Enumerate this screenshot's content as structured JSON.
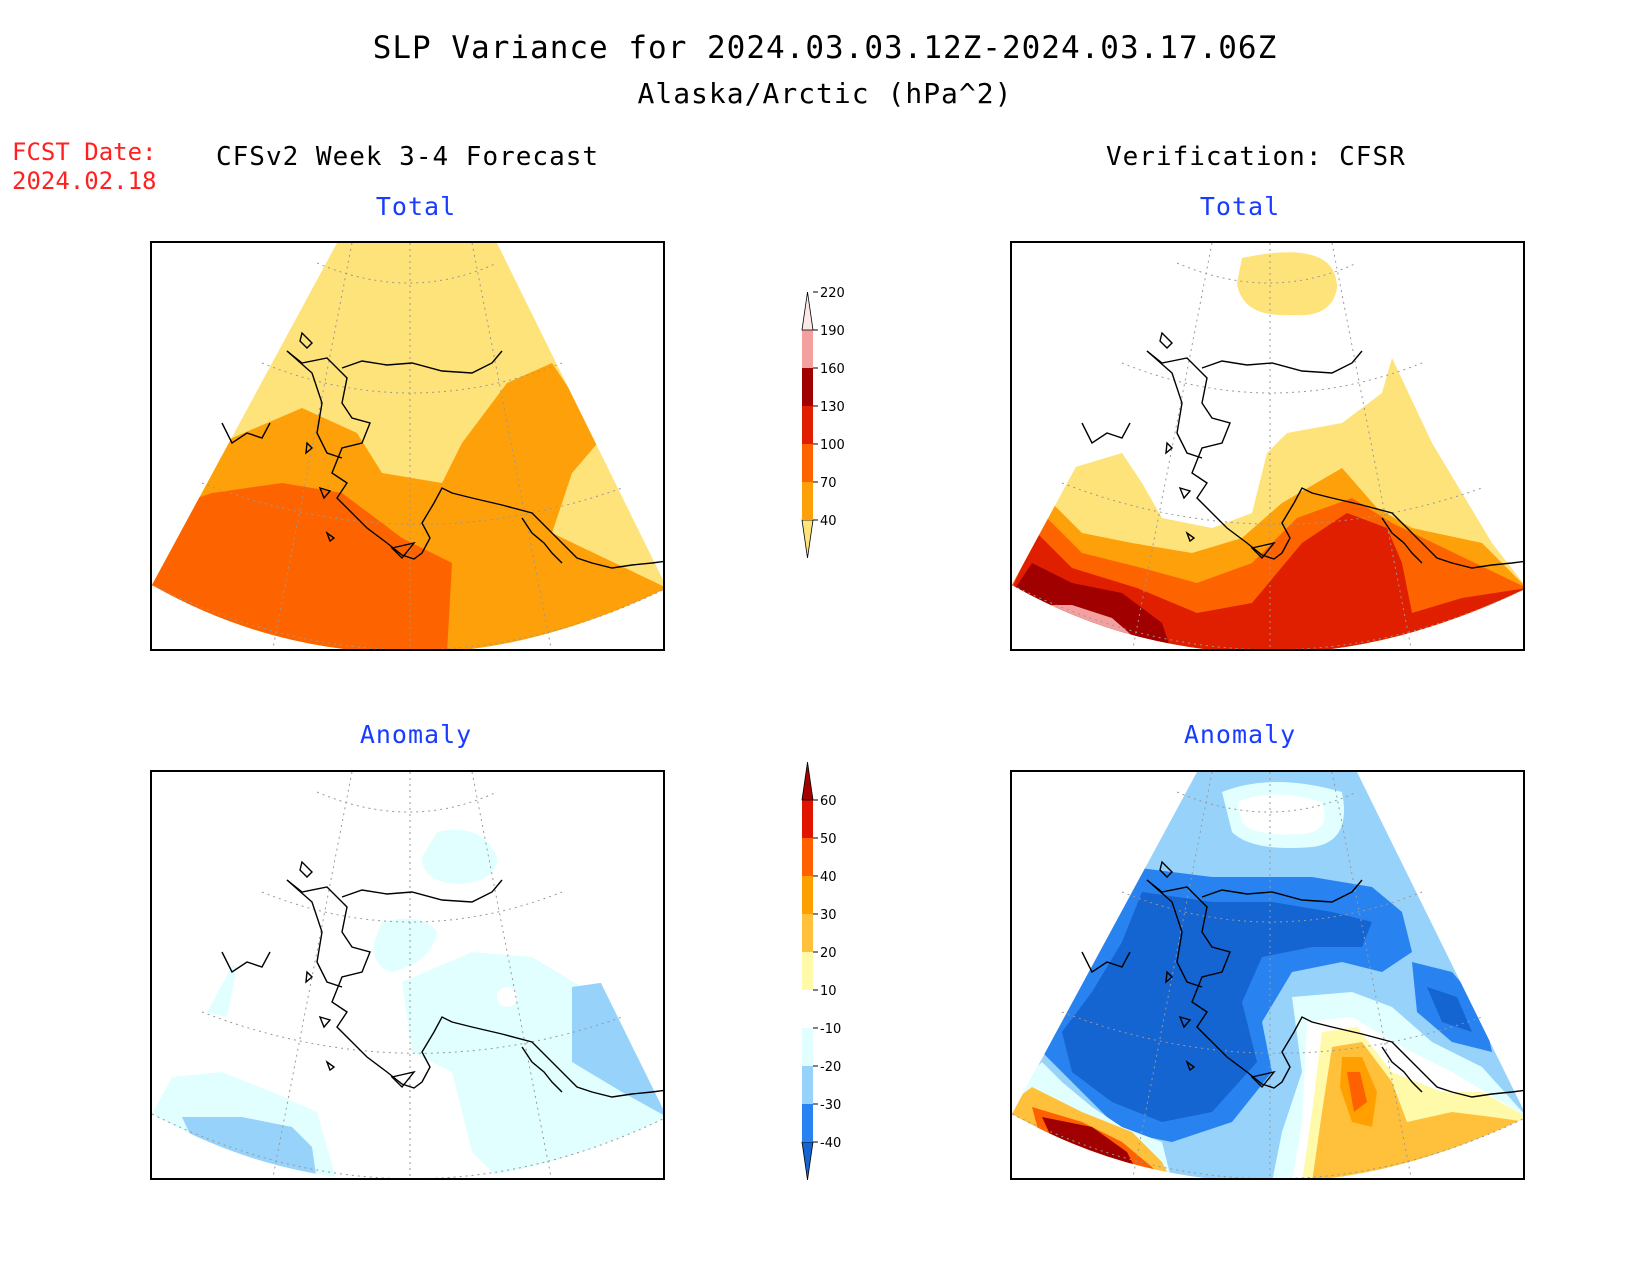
{
  "title": "SLP Variance for 2024.03.03.12Z-2024.03.17.06Z",
  "subtitle": "Alaska/Arctic (hPa^2)",
  "fcst_date_label": "FCST Date:",
  "fcst_date_value": "2024.02.18",
  "left_header": "CFSv2 Week 3-4 Forecast",
  "right_header": "Verification: CFSR",
  "panels": {
    "top_left_title": "Total",
    "top_right_title": "Total",
    "bottom_left_title": "Anomaly",
    "bottom_right_title": "Anomaly"
  },
  "colorbar_total": {
    "levels": [
      "40",
      "70",
      "100",
      "130",
      "160",
      "190",
      "220"
    ],
    "colors": [
      "#fde37a",
      "#fda00a",
      "#fd6400",
      "#e01e00",
      "#a00000",
      "#f2a0a0",
      "#fde8e8"
    ]
  },
  "colorbar_anomaly": {
    "levels": [
      "-40",
      "-30",
      "-20",
      "-10",
      "10",
      "20",
      "30",
      "40",
      "50",
      "60"
    ],
    "colors": [
      "#1464d2",
      "#2882f0",
      "#96d2fa",
      "#e1ffff",
      "#ffffff",
      "#fffaaa",
      "#ffc03c",
      "#ffa000",
      "#ff6000",
      "#e11400",
      "#a50000"
    ]
  },
  "colors": {
    "total_40_70": "#fde37a",
    "total_70_100": "#fda00a",
    "total_100_130": "#fd6400",
    "total_130_160": "#e01e00",
    "total_160_190": "#a00000",
    "total_190_220": "#f2a0a0",
    "anom_m40": "#1464d2",
    "anom_m30": "#2882f0",
    "anom_m20": "#96d2fa",
    "anom_m10": "#e1ffff",
    "title_blue": "#1a3cff",
    "fcst_red": "#ff2020"
  }
}
